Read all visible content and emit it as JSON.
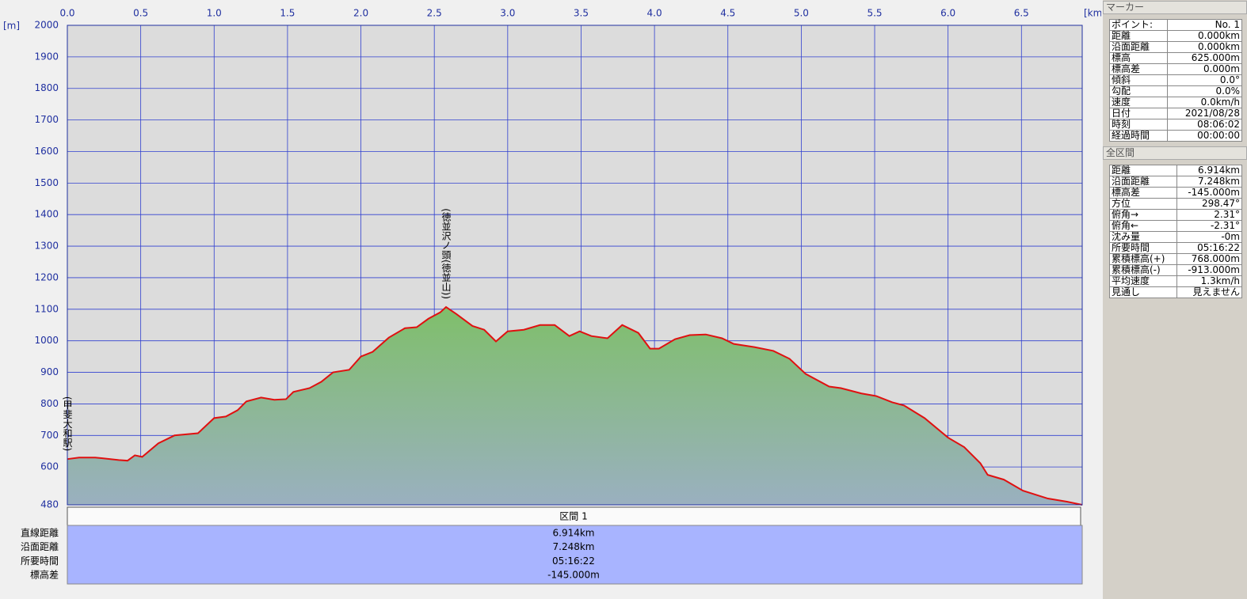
{
  "chart_data": {
    "type": "area",
    "y_unit": "[m]",
    "x_unit": "[km]",
    "xlim": [
      0,
      6.914
    ],
    "ylim": [
      480,
      2000
    ],
    "xticks": [
      {
        "value": 0,
        "label": "0.0"
      },
      0.5,
      {
        "value": 1,
        "label": "1.0"
      },
      1.5,
      {
        "value": 2,
        "label": "2.0"
      },
      2.5,
      {
        "value": 3,
        "label": "3.0"
      },
      3.5,
      {
        "value": 4,
        "label": "4.0"
      },
      4.5,
      {
        "value": 5,
        "label": "5.0"
      },
      5.5,
      {
        "value": 6,
        "label": "6.0"
      },
      6.5
    ],
    "yticks": [
      480,
      600,
      700,
      800,
      900,
      1000,
      1100,
      1200,
      1300,
      1400,
      1500,
      1600,
      1700,
      1800,
      1900,
      2000
    ],
    "grid": true,
    "color": "#e01010",
    "x": [
      0,
      0.08,
      0.19,
      0.35,
      0.41,
      0.46,
      0.51,
      0.62,
      0.73,
      0.89,
      1.0,
      1.08,
      1.16,
      1.22,
      1.32,
      1.41,
      1.49,
      1.54,
      1.65,
      1.73,
      1.81,
      1.92,
      2.0,
      2.08,
      2.19,
      2.3,
      2.38,
      2.46,
      2.54,
      2.58,
      2.65,
      2.76,
      2.84,
      2.92,
      3.0,
      3.11,
      3.22,
      3.32,
      3.42,
      3.49,
      3.57,
      3.68,
      3.78,
      3.89,
      3.97,
      4.03,
      4.14,
      4.24,
      4.35,
      4.46,
      4.54,
      4.68,
      4.81,
      4.92,
      5.03,
      5.19,
      5.27,
      5.41,
      5.51,
      5.62,
      5.7,
      5.84,
      6.0,
      6.11,
      6.22,
      6.27,
      6.38,
      6.51,
      6.68,
      6.81,
      6.914
    ],
    "values": [
      625,
      630,
      630,
      622,
      620,
      637,
      632,
      675,
      700,
      707,
      755,
      760,
      780,
      808,
      820,
      813,
      815,
      838,
      850,
      870,
      900,
      908,
      950,
      965,
      1010,
      1040,
      1043,
      1070,
      1090,
      1107,
      1085,
      1047,
      1035,
      998,
      1030,
      1035,
      1050,
      1050,
      1015,
      1030,
      1015,
      1008,
      1050,
      1025,
      975,
      975,
      1005,
      1018,
      1020,
      1008,
      990,
      980,
      968,
      943,
      895,
      855,
      850,
      833,
      825,
      805,
      795,
      755,
      693,
      663,
      612,
      575,
      560,
      525,
      500,
      490,
      480
    ],
    "annotations": [
      {
        "text": "(甲斐大和駅)",
        "x": 0
      },
      {
        "text": "(徳並沢ノ頭(徳並山))",
        "x": 2.58
      }
    ]
  },
  "segment_table": {
    "header": "区間 1",
    "rows": [
      [
        "直線距離",
        "6.914km"
      ],
      [
        "沿面距離",
        "7.248km"
      ],
      [
        "所要時間",
        "05:16:22"
      ],
      [
        "標高差",
        "-145.000m"
      ]
    ]
  },
  "marker_panel": {
    "title": "マーカー",
    "rows": [
      [
        "ポイント:",
        "No. 1"
      ],
      [
        "距離",
        "0.000km"
      ],
      [
        "沿面距離",
        "0.000km"
      ],
      [
        "標高",
        "625.000m"
      ],
      [
        "標高差",
        "0.000m"
      ],
      [
        "傾斜",
        "0.0°"
      ],
      [
        "勾配",
        "0.0%"
      ],
      [
        "速度",
        "0.0km/h"
      ],
      [
        "日付",
        "2021/08/28"
      ],
      [
        "時刻",
        "08:06:02"
      ],
      [
        "経過時間",
        "00:00:00"
      ]
    ]
  },
  "total_panel": {
    "title": "全区間",
    "rows": [
      [
        "距離",
        "6.914km"
      ],
      [
        "沿面距離",
        "7.248km"
      ],
      [
        "標高差",
        "-145.000m"
      ],
      [
        "方位",
        "298.47°"
      ],
      [
        "俯角→",
        "2.31°"
      ],
      [
        "俯角←",
        "-2.31°"
      ],
      [
        "沈み量",
        "-0m"
      ],
      [
        "所要時間",
        "05:16:22"
      ],
      [
        "累積標高(+)",
        "768.000m"
      ],
      [
        "累積標高(-)",
        "-913.000m"
      ],
      [
        "平均速度",
        "1.3km/h"
      ],
      [
        "見通し",
        "見えません"
      ]
    ]
  }
}
